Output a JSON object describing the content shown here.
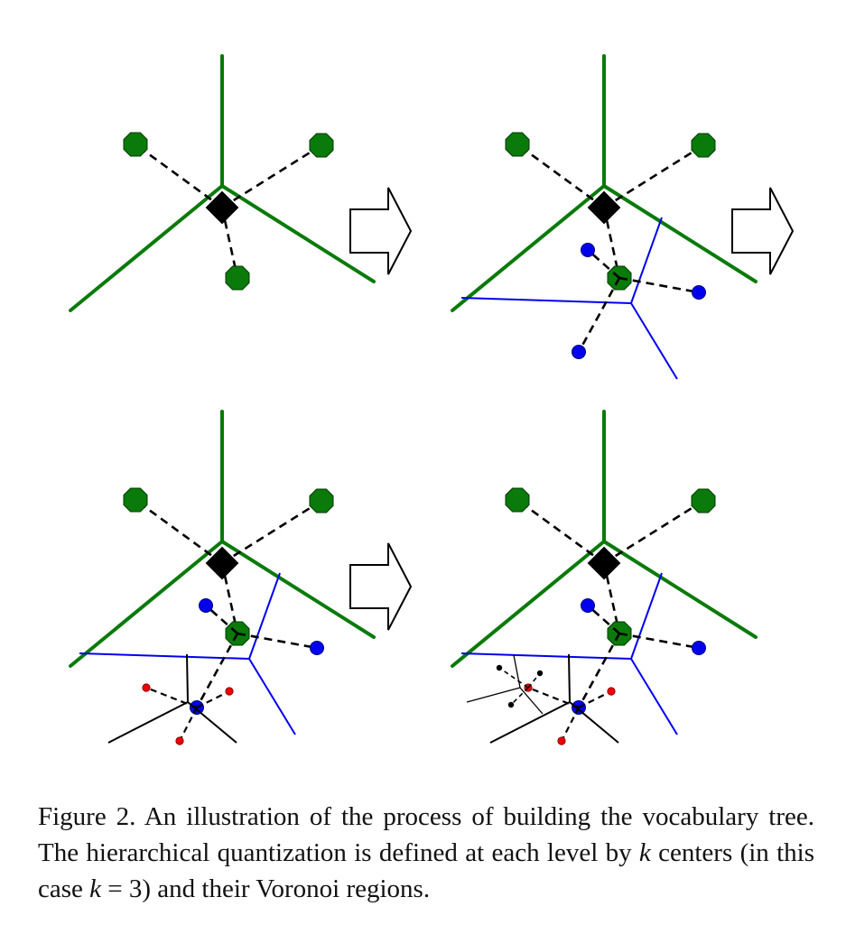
{
  "caption": {
    "label": "Figure 2.",
    "text1": "An illustration of the process of building the vocabulary tree.  The hierarchical quantization is defined at each level by",
    "k1": "k",
    "text2": "centers (in this case",
    "k2": "k",
    "eq": "= 3",
    "text3": ") and their Voronoi regions."
  },
  "colors": {
    "level1": "#0a7a0a",
    "level2": "#0000ee",
    "level3": "#000000",
    "leaf_points": "#ee0000",
    "root": "#000000"
  },
  "panels": [
    {
      "name": "panel-1",
      "levels_shown": 1
    },
    {
      "name": "panel-2",
      "levels_shown": 2
    },
    {
      "name": "panel-3",
      "levels_shown": 3
    },
    {
      "name": "panel-4",
      "levels_shown": 4
    }
  ],
  "arrows": [
    {
      "name": "arrow-1"
    },
    {
      "name": "arrow-2"
    },
    {
      "name": "arrow-3"
    }
  ]
}
